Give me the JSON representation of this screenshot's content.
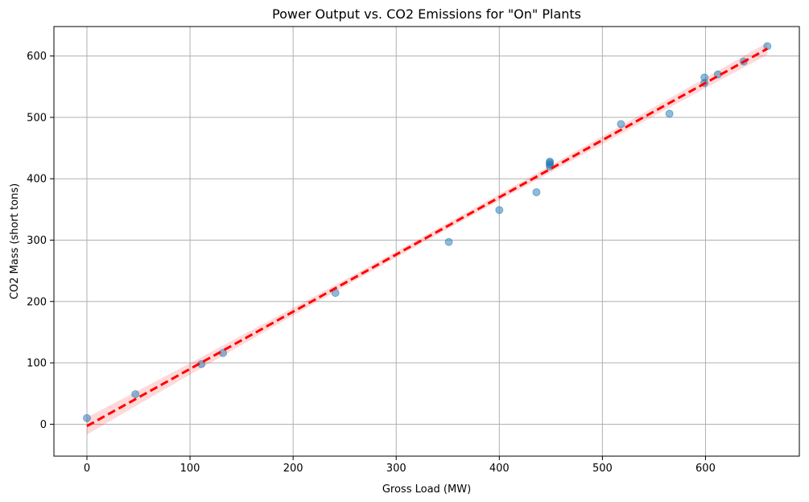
{
  "chart_data": {
    "type": "scatter",
    "title": "Power Output vs. CO2 Emissions for \"On\" Plants",
    "xlabel": "Gross Load (MW)",
    "ylabel": "CO2 Mass (short tons)",
    "xlim": [
      -32,
      691
    ],
    "ylim": [
      -52,
      648
    ],
    "xticks": [
      0,
      100,
      200,
      300,
      400,
      500,
      600
    ],
    "yticks": [
      0,
      100,
      200,
      300,
      400,
      500,
      600
    ],
    "grid": true,
    "points": [
      {
        "x": 0,
        "y": 10
      },
      {
        "x": 47,
        "y": 49
      },
      {
        "x": 111,
        "y": 98
      },
      {
        "x": 132,
        "y": 116
      },
      {
        "x": 241,
        "y": 214
      },
      {
        "x": 351,
        "y": 297
      },
      {
        "x": 400,
        "y": 349
      },
      {
        "x": 436,
        "y": 378
      },
      {
        "x": 449,
        "y": 420
      },
      {
        "x": 449,
        "y": 423
      },
      {
        "x": 449,
        "y": 426
      },
      {
        "x": 449,
        "y": 428
      },
      {
        "x": 518,
        "y": 489
      },
      {
        "x": 565,
        "y": 506
      },
      {
        "x": 599,
        "y": 556
      },
      {
        "x": 599,
        "y": 565
      },
      {
        "x": 612,
        "y": 570
      },
      {
        "x": 637,
        "y": 591
      },
      {
        "x": 660,
        "y": 616
      }
    ],
    "regression": {
      "x_range": [
        0,
        660
      ],
      "y_start": -3,
      "y_end": 612,
      "ci_halfwidth_start": 14,
      "ci_halfwidth_mid": 5,
      "ci_halfwidth_end": 10,
      "color": "#ff0000"
    },
    "point_color": "#1f77b4"
  }
}
